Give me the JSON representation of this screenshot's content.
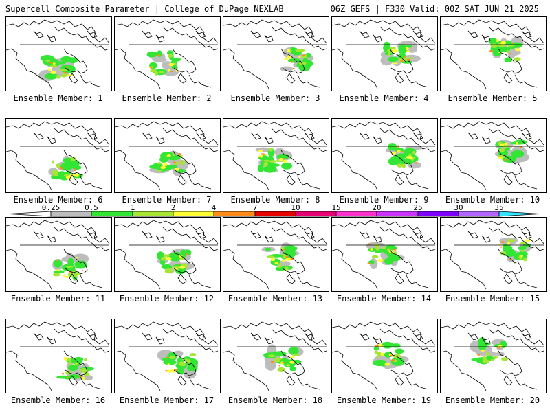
{
  "header": {
    "left_title": "Supercell Composite Parameter | College of DuPage NEXLAB",
    "right_title": "06Z GEFS | F330 Valid: 00Z SAT JUN 21 2025"
  },
  "panels": [
    {
      "label": "Ensemble Member: 1"
    },
    {
      "label": "Ensemble Member: 2"
    },
    {
      "label": "Ensemble Member: 3"
    },
    {
      "label": "Ensemble Member: 4"
    },
    {
      "label": "Ensemble Member: 5"
    },
    {
      "label": "Ensemble Member: 6"
    },
    {
      "label": "Ensemble Member: 7"
    },
    {
      "label": "Ensemble Member: 8"
    },
    {
      "label": "Ensemble Member: 9"
    },
    {
      "label": "Ensemble Member: 10"
    },
    {
      "label": "Ensemble Member: 11"
    },
    {
      "label": "Ensemble Member: 12"
    },
    {
      "label": "Ensemble Member: 13"
    },
    {
      "label": "Ensemble Member: 14"
    },
    {
      "label": "Ensemble Member: 15"
    },
    {
      "label": "Ensemble Member: 16"
    },
    {
      "label": "Ensemble Member: 17"
    },
    {
      "label": "Ensemble Member: 18"
    },
    {
      "label": "Ensemble Member: 19"
    },
    {
      "label": "Ensemble Member: 20"
    }
  ],
  "colorbar": {
    "thresholds": [
      "0.25",
      "0.5",
      "1",
      "2",
      "4",
      "7",
      "10",
      "15",
      "20",
      "25",
      "30",
      "35"
    ],
    "colors": [
      "#ffffff",
      "#bdbdbd",
      "#33e633",
      "#a6e633",
      "#ffff33",
      "#ff8c1a",
      "#e60000",
      "#e60073",
      "#ff33cc",
      "#cc33ff",
      "#8000ff",
      "#b366ff",
      "#33e6ff"
    ]
  }
}
